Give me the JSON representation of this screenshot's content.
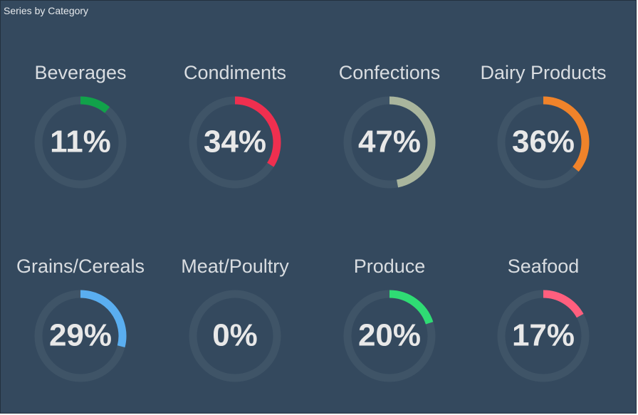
{
  "panel": {
    "title": "Series by Category"
  },
  "colors": {
    "background": "#34495e",
    "track": "#3f5467",
    "value_text": "#e8e8e8",
    "label_text": "#d9dde1"
  },
  "chart_data": {
    "type": "gauge",
    "min": 0,
    "max": 100,
    "unit": "%",
    "items": [
      {
        "label": "Beverages",
        "value": 11,
        "display": "11%",
        "color": "#11a24a"
      },
      {
        "label": "Condiments",
        "value": 34,
        "display": "34%",
        "color": "#ef2f4f"
      },
      {
        "label": "Confections",
        "value": 47,
        "display": "47%",
        "color": "#a9b59d"
      },
      {
        "label": "Dairy Products",
        "value": 36,
        "display": "36%",
        "color": "#f0832a"
      },
      {
        "label": "Grains/Cereals",
        "value": 29,
        "display": "29%",
        "color": "#5aaef0"
      },
      {
        "label": "Meat/Poultry",
        "value": 0,
        "display": "0%",
        "color": "#8a8a8a"
      },
      {
        "label": "Produce",
        "value": 20,
        "display": "20%",
        "color": "#2fdc74"
      },
      {
        "label": "Seafood",
        "value": 17,
        "display": "17%",
        "color": "#ff5f7e"
      }
    ]
  }
}
